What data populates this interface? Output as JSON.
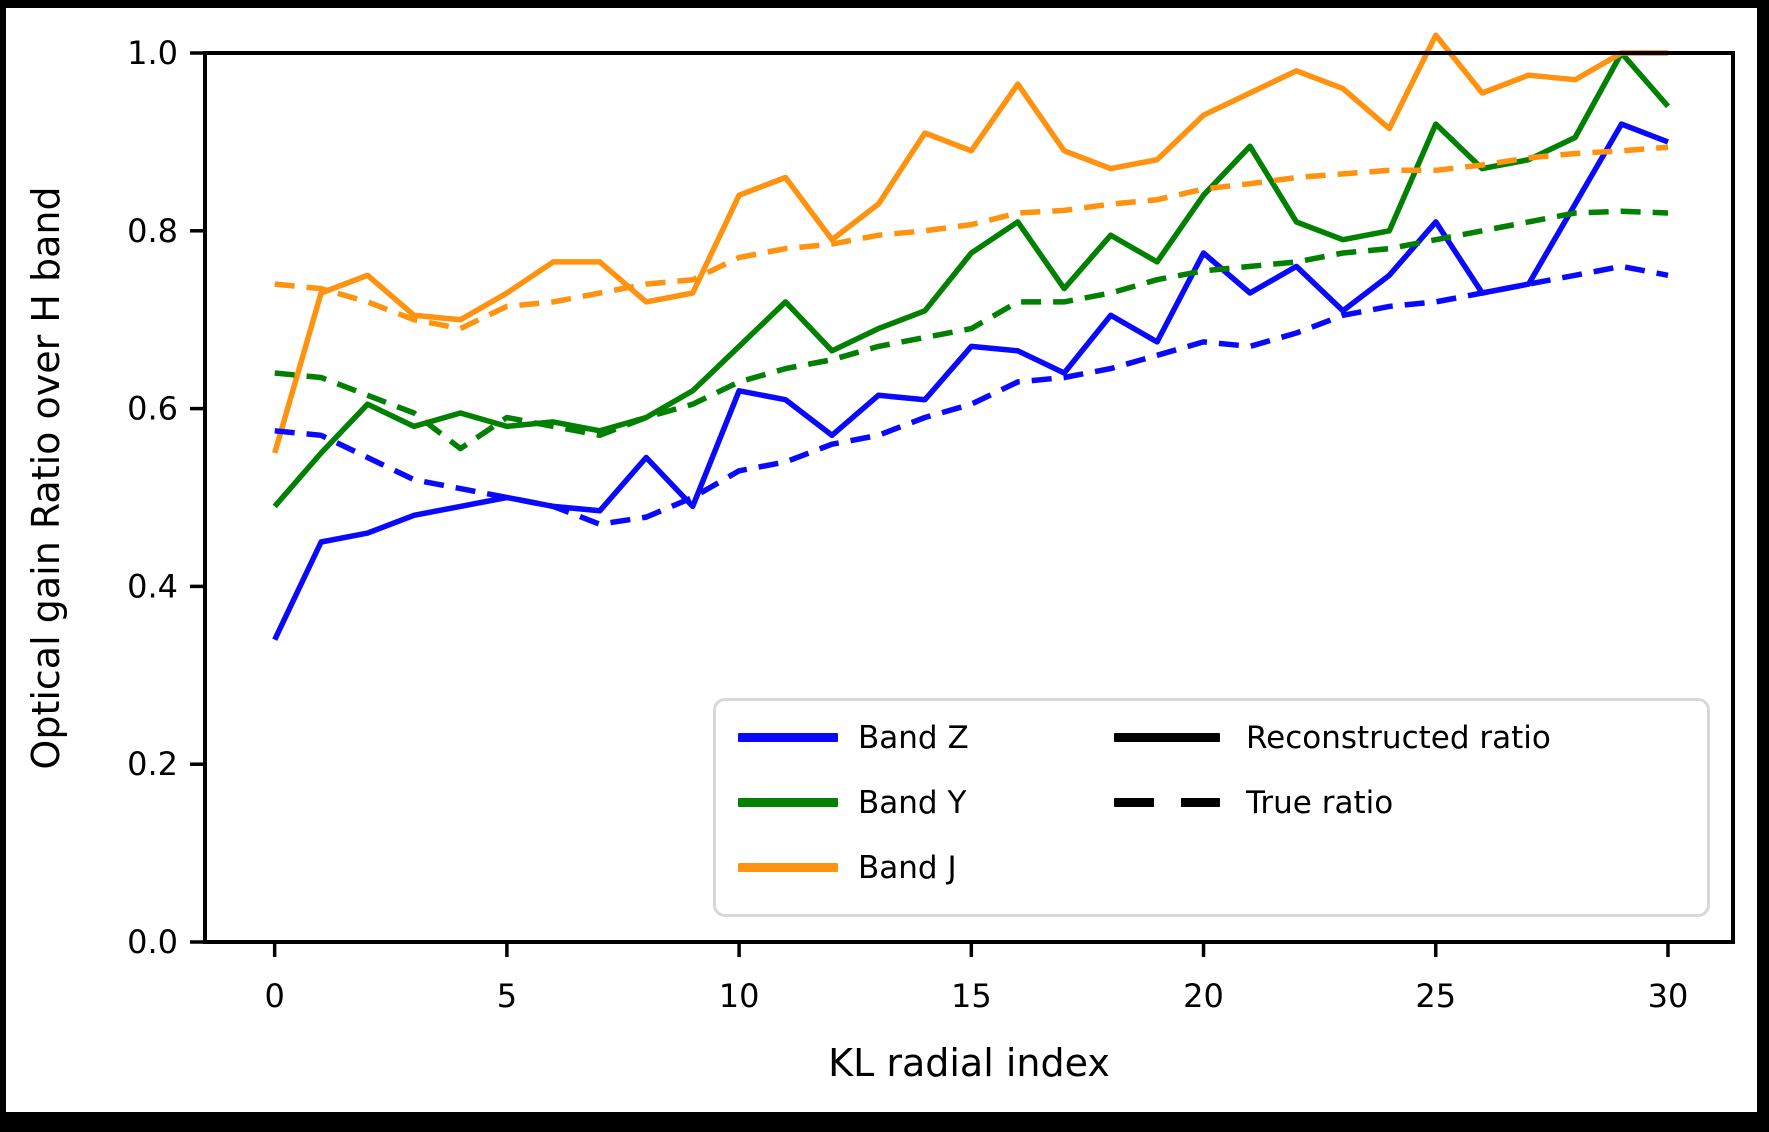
{
  "chart_data": {
    "type": "line",
    "title": "",
    "xlabel": "KL radial index",
    "ylabel": "Optical gain Ratio over H band",
    "xlim": [
      -1.5,
      31.4
    ],
    "ylim": [
      0,
      1.0
    ],
    "grid": false,
    "xticks": [
      0,
      5,
      10,
      15,
      20,
      25,
      30
    ],
    "xtick_labels": [
      "0",
      "5",
      "10",
      "15",
      "20",
      "25",
      "30"
    ],
    "yticks": [
      0.0,
      0.2,
      0.4,
      0.6,
      0.8,
      1.0
    ],
    "ytick_labels": [
      "0.0",
      "0.2",
      "0.4",
      "0.6",
      "0.8",
      "1.0"
    ],
    "x": [
      0,
      1,
      2,
      3,
      4,
      5,
      6,
      7,
      8,
      9,
      10,
      11,
      12,
      13,
      14,
      15,
      16,
      17,
      18,
      19,
      20,
      21,
      22,
      23,
      24,
      25,
      26,
      27,
      28,
      29,
      30
    ],
    "series": [
      {
        "id": "band_z_recon",
        "name": "Band Z reconstructed ratio",
        "color": "#0909ff",
        "dashed": false,
        "values": [
          0.34,
          0.45,
          0.46,
          0.48,
          0.49,
          0.5,
          0.49,
          0.485,
          0.545,
          0.49,
          0.62,
          0.61,
          0.57,
          0.615,
          0.61,
          0.67,
          0.665,
          0.64,
          0.705,
          0.675,
          0.775,
          0.73,
          0.76,
          0.71,
          0.75,
          0.81,
          0.73,
          0.74,
          0.83,
          0.92,
          0.9
        ]
      },
      {
        "id": "band_y_recon",
        "name": "Band Y reconstructed ratio",
        "color": "#018001",
        "dashed": false,
        "values": [
          0.49,
          0.55,
          0.605,
          0.58,
          0.595,
          0.58,
          0.585,
          0.575,
          0.59,
          0.62,
          0.67,
          0.72,
          0.665,
          0.69,
          0.71,
          0.775,
          0.81,
          0.735,
          0.795,
          0.765,
          0.84,
          0.895,
          0.81,
          0.79,
          0.8,
          0.92,
          0.87,
          0.88,
          0.905,
          1.0,
          0.94
        ]
      },
      {
        "id": "band_j_recon",
        "name": "Band J reconstructed ratio",
        "color": "#ff920e",
        "dashed": false,
        "values": [
          0.55,
          0.73,
          0.75,
          0.705,
          0.7,
          0.73,
          0.765,
          0.765,
          0.72,
          0.73,
          0.84,
          0.86,
          0.79,
          0.83,
          0.91,
          0.89,
          0.965,
          0.89,
          0.87,
          0.88,
          0.93,
          0.955,
          0.98,
          0.96,
          0.915,
          1.02,
          0.955,
          0.975,
          0.97,
          1.0,
          1.0
        ]
      },
      {
        "id": "band_z_true",
        "name": "Band Z true ratio",
        "color": "#0909ff",
        "dashed": true,
        "values": [
          0.575,
          0.57,
          0.545,
          0.52,
          0.51,
          0.5,
          0.49,
          0.47,
          0.478,
          0.5,
          0.53,
          0.54,
          0.56,
          0.57,
          0.59,
          0.605,
          0.63,
          0.635,
          0.645,
          0.66,
          0.675,
          0.67,
          0.685,
          0.705,
          0.715,
          0.72,
          0.73,
          0.74,
          0.75,
          0.76,
          0.75
        ]
      },
      {
        "id": "band_y_true",
        "name": "Band Y true ratio",
        "color": "#018001",
        "dashed": true,
        "values": [
          0.64,
          0.635,
          0.615,
          0.595,
          0.555,
          0.59,
          0.58,
          0.57,
          0.59,
          0.605,
          0.63,
          0.645,
          0.655,
          0.67,
          0.68,
          0.69,
          0.72,
          0.72,
          0.73,
          0.745,
          0.755,
          0.76,
          0.765,
          0.775,
          0.78,
          0.79,
          0.8,
          0.81,
          0.82,
          0.822,
          0.82
        ]
      },
      {
        "id": "band_j_true",
        "name": "Band J true ratio",
        "color": "#ff920e",
        "dashed": true,
        "values": [
          0.74,
          0.735,
          0.72,
          0.7,
          0.69,
          0.715,
          0.72,
          0.73,
          0.74,
          0.745,
          0.77,
          0.78,
          0.785,
          0.795,
          0.8,
          0.807,
          0.82,
          0.823,
          0.83,
          0.835,
          0.847,
          0.853,
          0.86,
          0.864,
          0.868,
          0.868,
          0.874,
          0.882,
          0.887,
          0.89,
          0.894
        ]
      }
    ],
    "legend": {
      "position": "lower right inside",
      "bands": [
        {
          "label": "Band Z",
          "color": "#0909ff"
        },
        {
          "label": "Band Y",
          "color": "#018001"
        },
        {
          "label": "Band J",
          "color": "#ff920e"
        }
      ],
      "styles": [
        {
          "label": "Reconstructed ratio",
          "dashed": false,
          "color": "#000000"
        },
        {
          "label": "True ratio",
          "dashed": true,
          "color": "#000000"
        }
      ]
    }
  }
}
